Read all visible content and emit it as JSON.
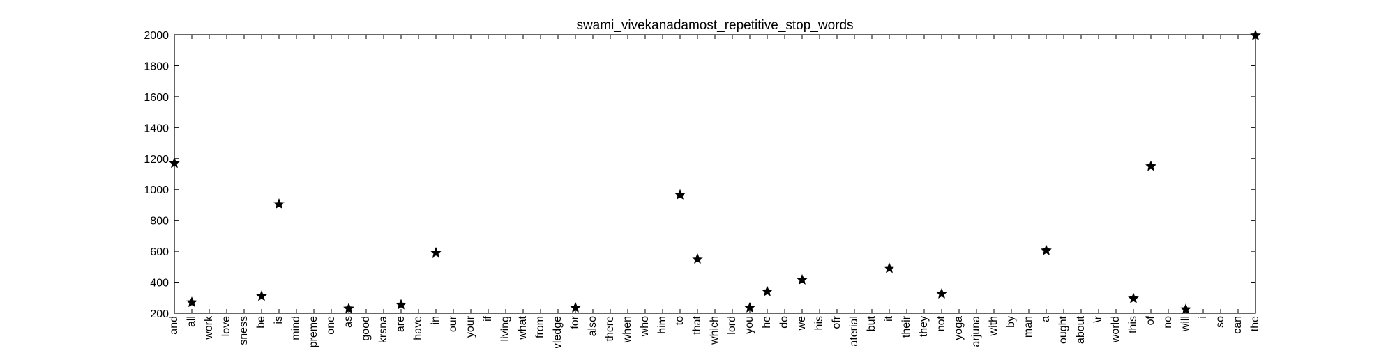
{
  "chart_data": {
    "type": "scatter",
    "title": "swami_vivekanadamost_repetitive_stop_words",
    "xlabel": "",
    "ylabel": "",
    "ylim": [
      200,
      2000
    ],
    "yticks": [
      200,
      400,
      600,
      800,
      1000,
      1200,
      1400,
      1600,
      1800,
      2000
    ],
    "grid": false,
    "marker": "star",
    "categories": [
      "and",
      "all",
      "work",
      "love",
      "sness",
      "be",
      "is",
      "mind",
      "preme",
      "one",
      "as",
      "good",
      "krsna",
      "are",
      "have",
      "in",
      "our",
      "your",
      "if",
      "living",
      "what",
      "from",
      "vledge",
      "for",
      "also",
      "there",
      "when",
      "who",
      "him",
      "to",
      "that",
      "which",
      "lord",
      "you",
      "he",
      "do",
      "we",
      "his",
      "ofr",
      "aterial",
      "but",
      "it",
      "their",
      "they",
      "not",
      "yoga",
      "arjuna",
      "with",
      "by",
      "man",
      "a",
      "ought",
      "about",
      "\\r",
      "world",
      "this",
      "of",
      "no",
      "will",
      "i",
      "so",
      "can",
      "the"
    ],
    "points": [
      {
        "x": "and",
        "y": 1170
      },
      {
        "x": "all",
        "y": 270
      },
      {
        "x": "be",
        "y": 310
      },
      {
        "x": "is",
        "y": 905
      },
      {
        "x": "as",
        "y": 230
      },
      {
        "x": "are",
        "y": 255
      },
      {
        "x": "in",
        "y": 590
      },
      {
        "x": "for",
        "y": 235
      },
      {
        "x": "to",
        "y": 965
      },
      {
        "x": "that",
        "y": 550
      },
      {
        "x": "you",
        "y": 235
      },
      {
        "x": "he",
        "y": 340
      },
      {
        "x": "we",
        "y": 415
      },
      {
        "x": "it",
        "y": 490
      },
      {
        "x": "not",
        "y": 325
      },
      {
        "x": "a",
        "y": 605
      },
      {
        "x": "this",
        "y": 295
      },
      {
        "x": "of",
        "y": 1150
      },
      {
        "x": "will",
        "y": 225
      },
      {
        "x": "the",
        "y": 1995
      }
    ]
  }
}
